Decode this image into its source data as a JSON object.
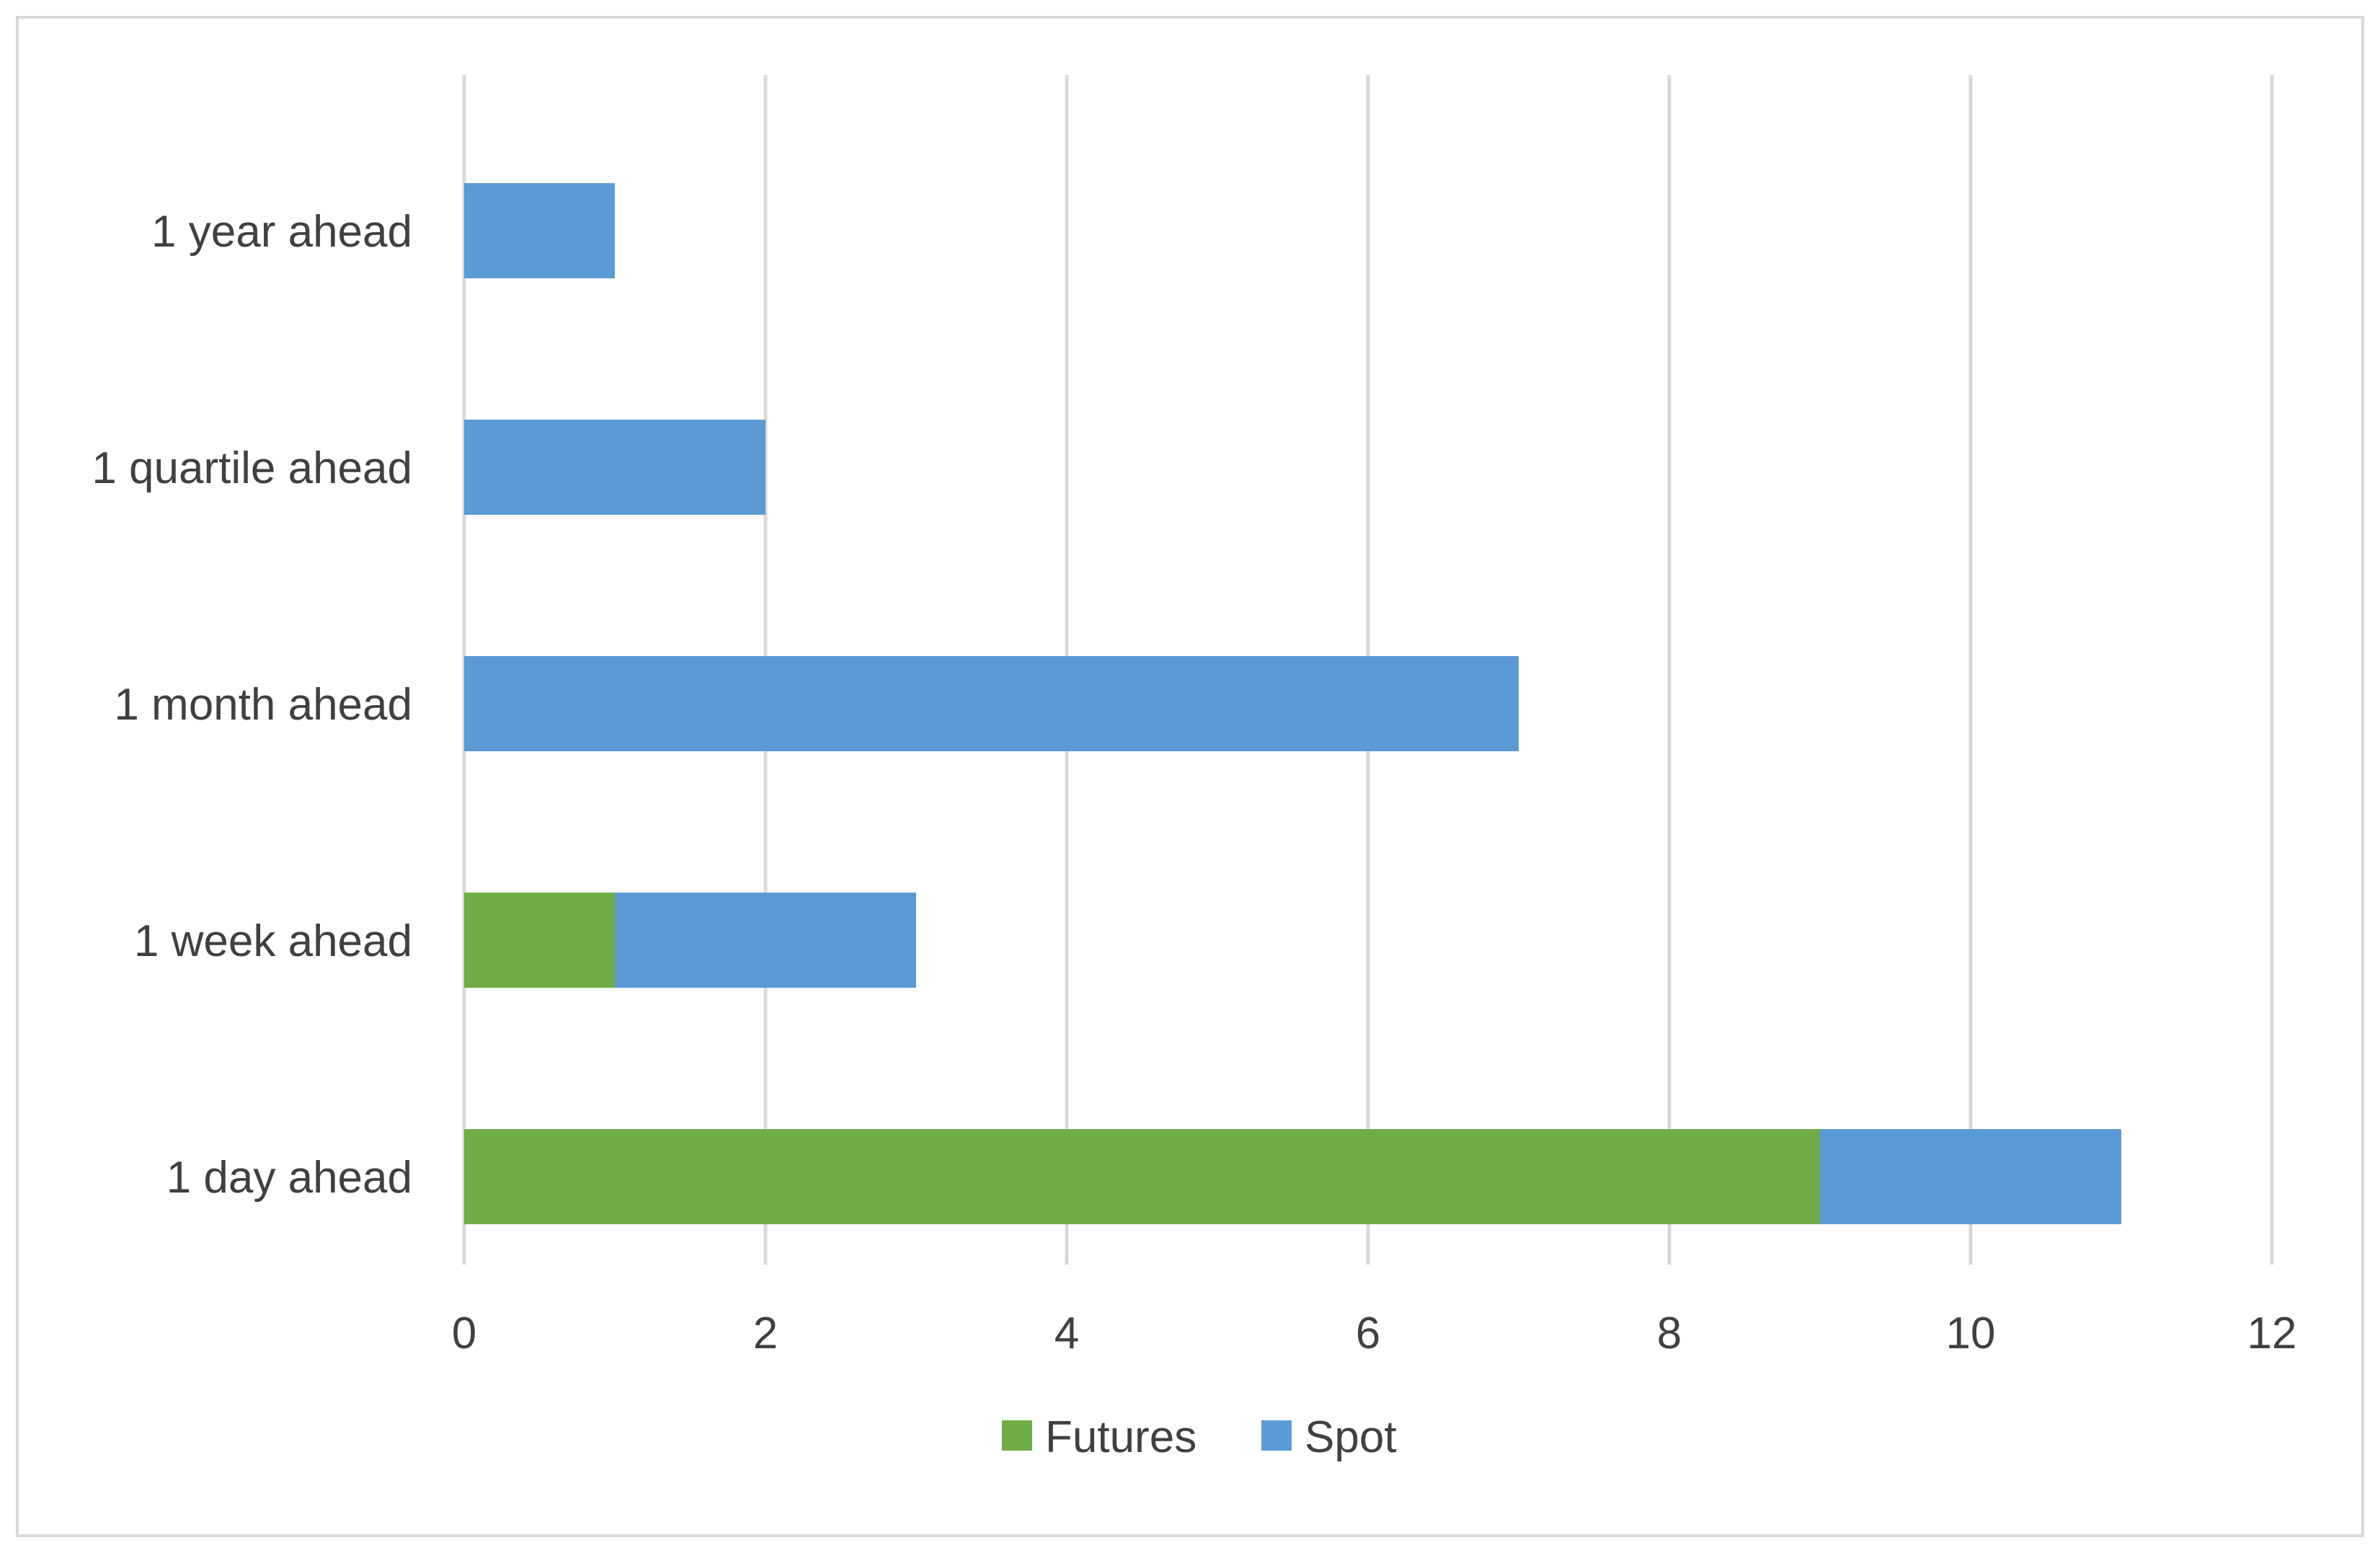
{
  "chart_data": {
    "type": "bar",
    "orientation": "horizontal",
    "stacked": true,
    "categories": [
      "1 day ahead",
      "1 week ahead",
      "1 month ahead",
      "1 quartile ahead",
      "1 year ahead"
    ],
    "series": [
      {
        "name": "Futures",
        "color": "#70ad47",
        "values": [
          9,
          1,
          0,
          0,
          0
        ]
      },
      {
        "name": "Spot",
        "color": "#5b9bd5",
        "values": [
          2,
          2,
          7,
          2,
          1
        ]
      }
    ],
    "xlim": [
      0,
      12
    ],
    "xticks": [
      0,
      2,
      4,
      6,
      8,
      10,
      12
    ],
    "title": "",
    "xlabel": "",
    "ylabel": "",
    "grid": "vertical",
    "legend_position": "bottom",
    "colors": {
      "gridline": "#d9d9d9",
      "text": "#404040",
      "border": "#d9d9d9"
    }
  }
}
